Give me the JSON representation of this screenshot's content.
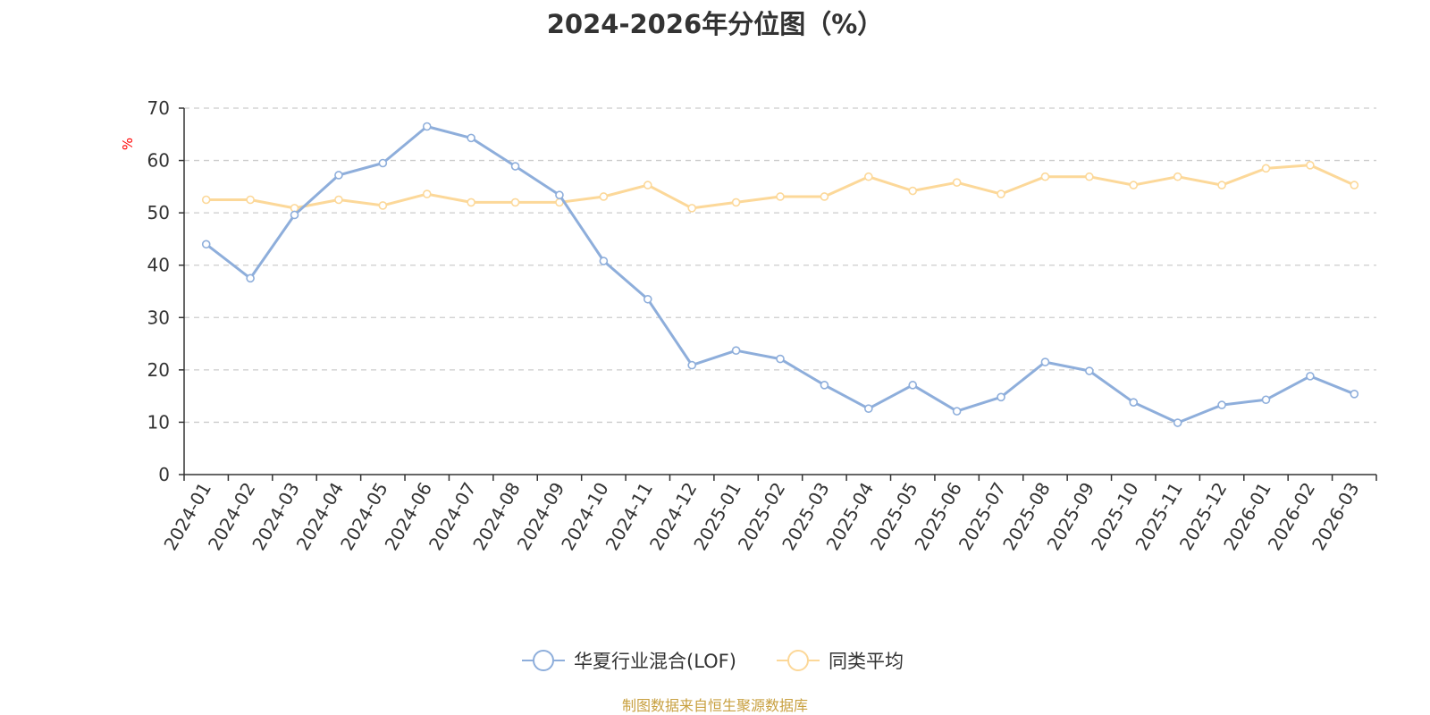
{
  "chart_data": {
    "type": "line",
    "title": "2024-2026年分位图（%）",
    "ylabel": "%",
    "xlabel": "",
    "ylim": [
      0,
      70
    ],
    "yticks": [
      0,
      10,
      20,
      30,
      40,
      50,
      60,
      70
    ],
    "grid": true,
    "legend_position": "bottom",
    "categories": [
      "2024-01",
      "2024-02",
      "2024-03",
      "2024-04",
      "2024-05",
      "2024-06",
      "2024-07",
      "2024-08",
      "2024-09",
      "2024-10",
      "2024-11",
      "2024-12",
      "2025-01",
      "2025-02",
      "2025-03",
      "2025-04",
      "2025-05",
      "2025-06",
      "2025-07",
      "2025-08",
      "2025-09",
      "2025-10",
      "2025-11",
      "2025-12",
      "2026-01",
      "2026-02",
      "2026-03"
    ],
    "series": [
      {
        "name": "华夏行业混合(LOF)",
        "color": "#8eaedb",
        "values": [
          44.0,
          37.5,
          49.6,
          57.2,
          59.5,
          66.5,
          64.3,
          58.9,
          53.4,
          40.8,
          33.5,
          20.9,
          23.7,
          22.1,
          17.1,
          12.6,
          17.1,
          12.1,
          14.8,
          21.5,
          19.8,
          13.8,
          9.9,
          13.3,
          14.3,
          18.8,
          15.4
        ]
      },
      {
        "name": "同类平均",
        "color": "#fcd899",
        "values": [
          52.5,
          52.5,
          50.9,
          52.5,
          51.4,
          53.6,
          52.0,
          52.0,
          52.0,
          53.1,
          55.3,
          50.9,
          52.0,
          53.1,
          53.1,
          56.9,
          54.2,
          55.8,
          53.6,
          56.9,
          56.9,
          55.3,
          56.9,
          55.3,
          58.5,
          59.1,
          55.3
        ]
      }
    ]
  },
  "source": "制图数据来自恒生聚源数据库",
  "colors": {
    "axis": "#333333",
    "grid": "#cccccc",
    "ylabel": "#ff0000",
    "source": "#c8a040"
  }
}
